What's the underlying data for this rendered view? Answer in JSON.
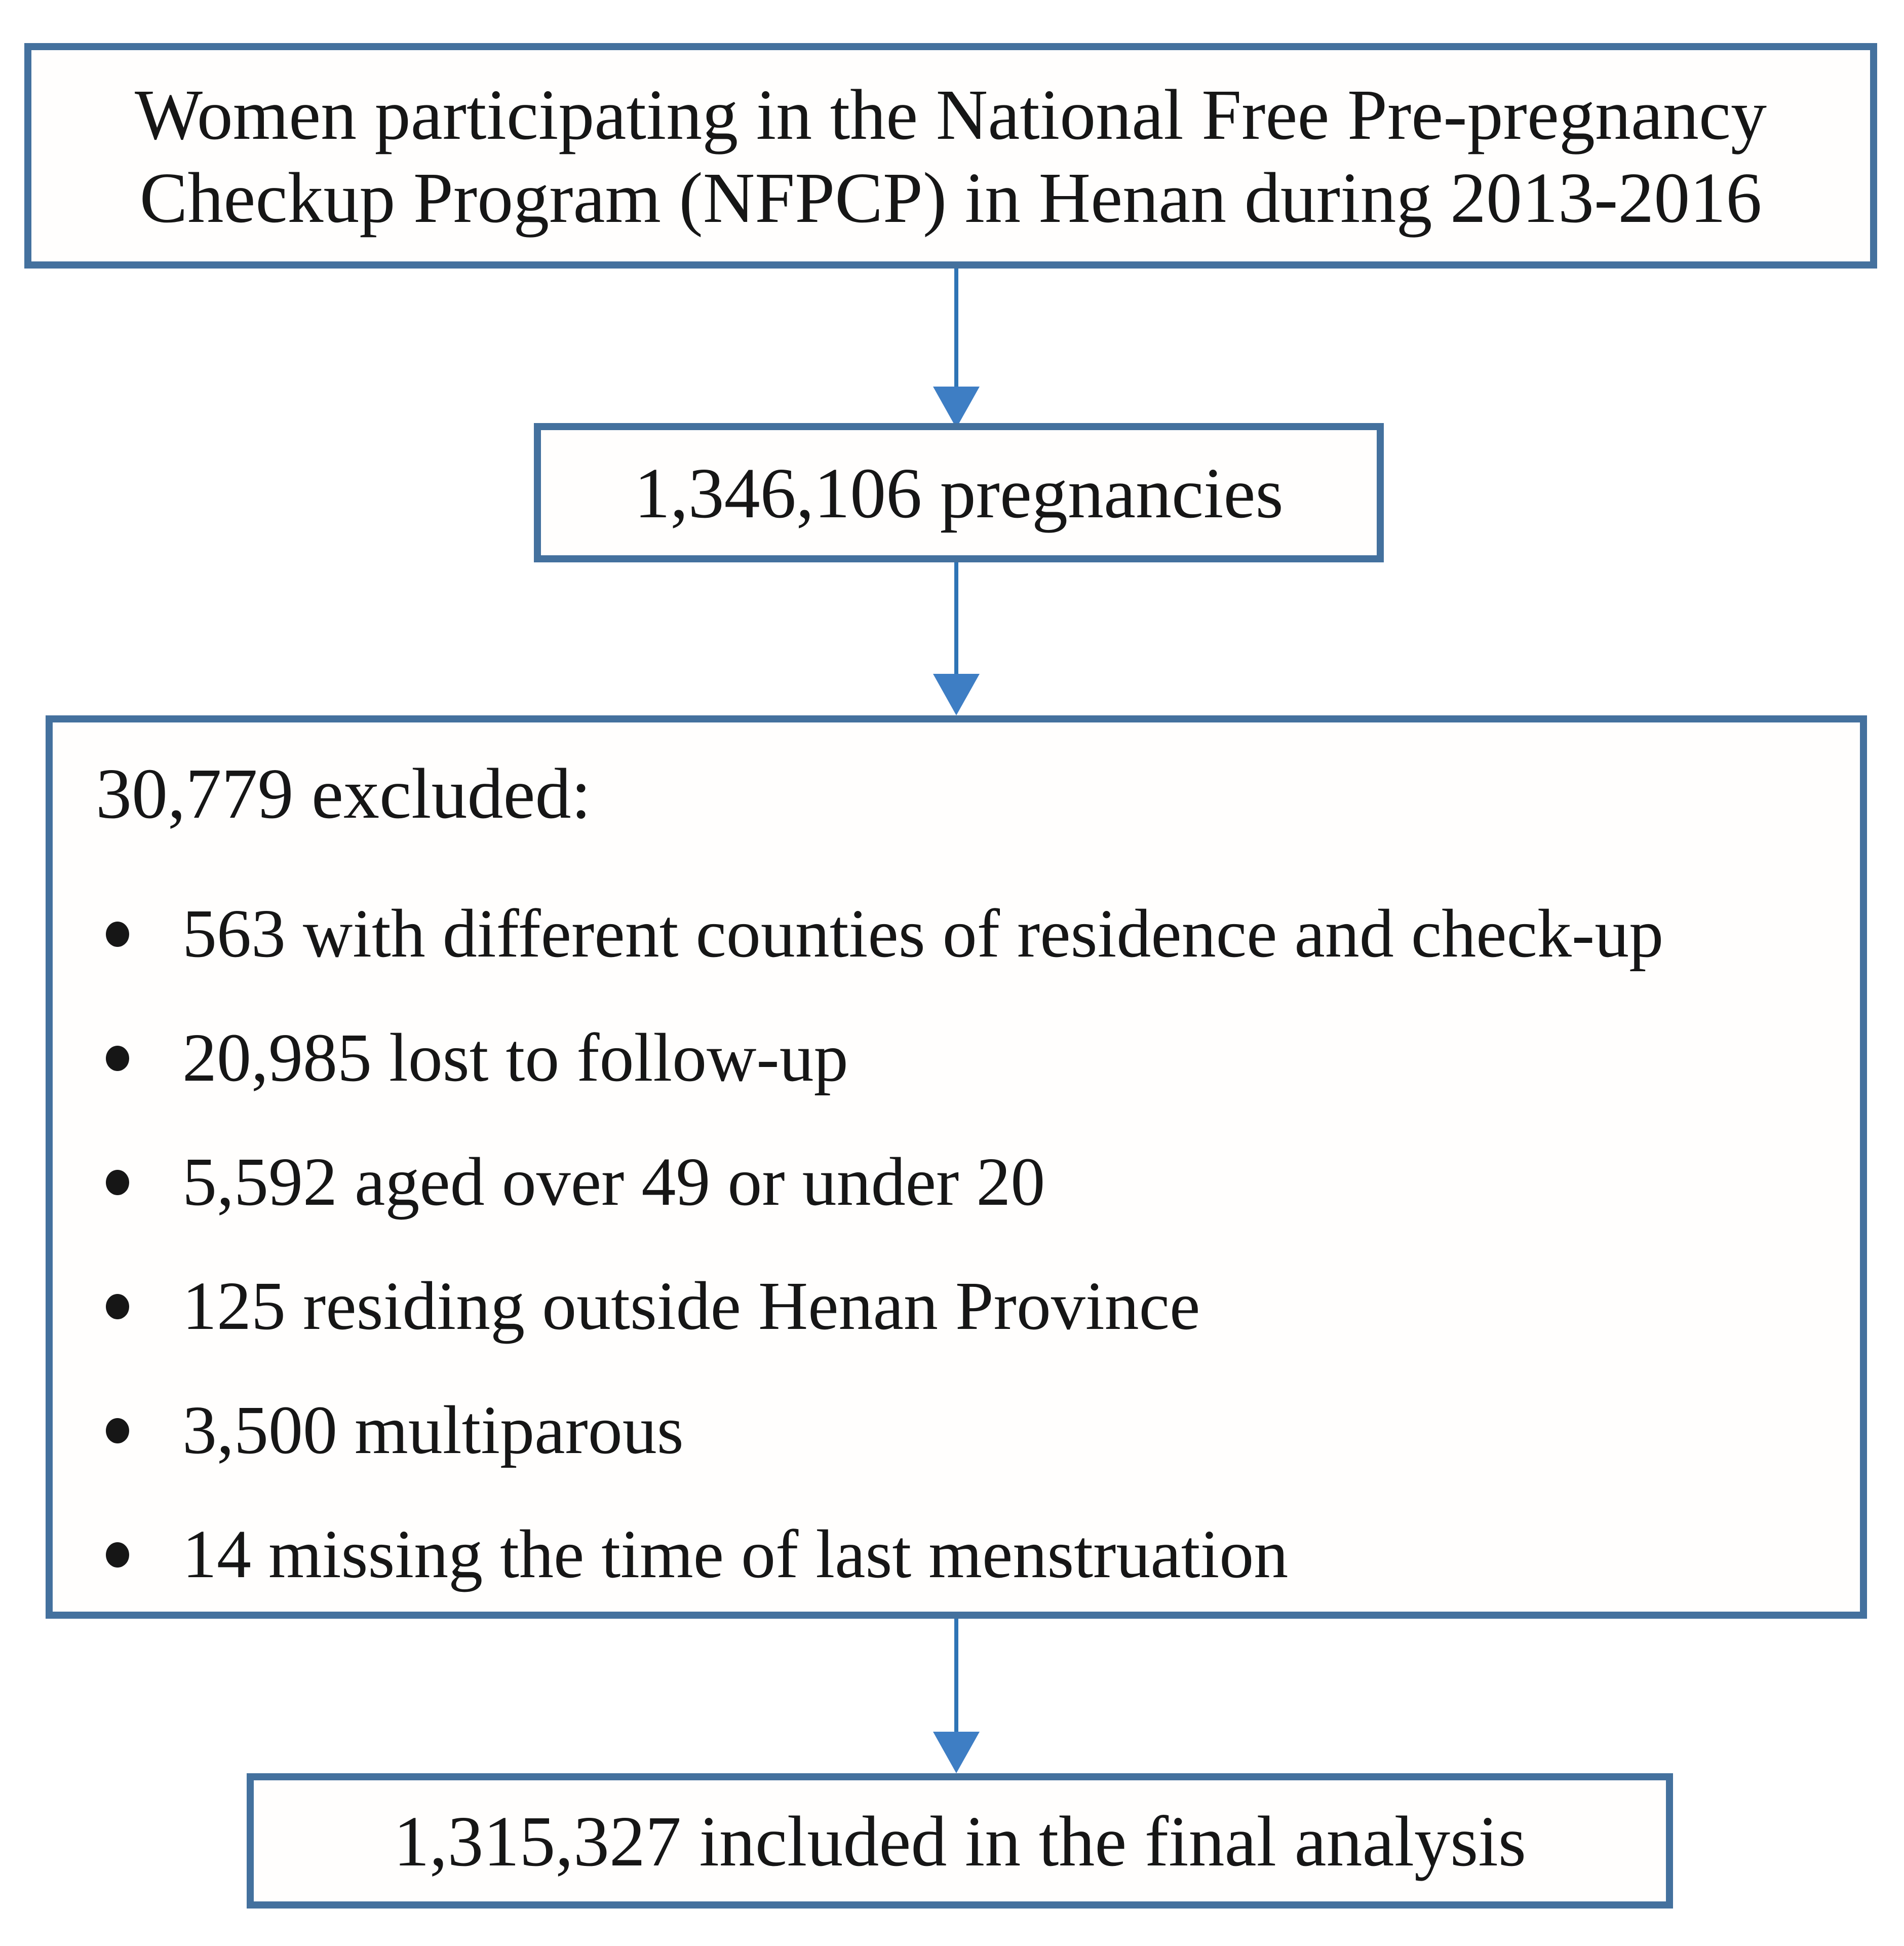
{
  "diagram": {
    "top_box": {
      "lines": [
        "Women participating in the National Free Pre-pregnancy",
        "Checkup Program (NFPCP) in Henan during 2013-2016"
      ]
    },
    "pregnancies_box": {
      "text": "1,346,106 pregnancies"
    },
    "excluded_box": {
      "header": "30,779 excluded:",
      "items": [
        "563 with different counties of residence and check-up",
        "20,985 lost to follow-up",
        "5,592 aged over 49 or under 20",
        "125 residing outside Henan Province",
        "3,500 multiparous",
        "14 missing the time of last menstruation"
      ]
    },
    "final_box": {
      "text": "1,315,327 included in the final analysis"
    },
    "colors": {
      "box_border": "#44719E",
      "arrow_line": "#2E74B5",
      "arrow_head": "#3E7EC4",
      "text": "#161616",
      "bg": "#FFFFFF"
    }
  }
}
